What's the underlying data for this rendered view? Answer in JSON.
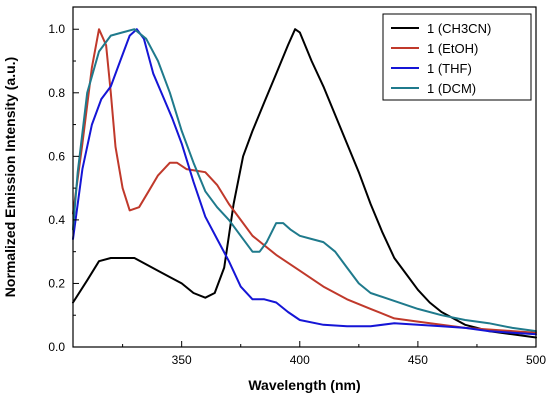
{
  "chart_data": {
    "type": "line",
    "title": "",
    "xlabel": "Wavelength (nm)",
    "ylabel": "Normalized Emission Intensity (a.u.)",
    "xlim": [
      304,
      500
    ],
    "ylim": [
      0.0,
      1.07
    ],
    "x_ticks": [
      350,
      400,
      450,
      500
    ],
    "y_ticks": [
      0.0,
      0.2,
      0.4,
      0.6,
      0.8,
      1.0
    ],
    "x_tick_labels": [
      "350",
      "400",
      "450",
      "500"
    ],
    "y_tick_labels": [
      "0.0",
      "0.2",
      "0.4",
      "0.6",
      "0.8",
      "1.0"
    ],
    "grid": false,
    "legend_position": "top-right",
    "series": [
      {
        "name": "1 (CH3CN)",
        "color": "#000000",
        "points": [
          [
            304,
            0.14
          ],
          [
            310,
            0.21
          ],
          [
            315,
            0.27
          ],
          [
            320,
            0.28
          ],
          [
            325,
            0.28
          ],
          [
            330,
            0.28
          ],
          [
            335,
            0.26
          ],
          [
            340,
            0.24
          ],
          [
            345,
            0.22
          ],
          [
            350,
            0.2
          ],
          [
            355,
            0.17
          ],
          [
            360,
            0.155
          ],
          [
            364,
            0.17
          ],
          [
            368,
            0.25
          ],
          [
            372,
            0.45
          ],
          [
            376,
            0.6
          ],
          [
            380,
            0.68
          ],
          [
            385,
            0.77
          ],
          [
            390,
            0.86
          ],
          [
            395,
            0.95
          ],
          [
            398,
            1.0
          ],
          [
            400,
            0.99
          ],
          [
            405,
            0.9
          ],
          [
            410,
            0.82
          ],
          [
            415,
            0.73
          ],
          [
            420,
            0.64
          ],
          [
            425,
            0.55
          ],
          [
            430,
            0.45
          ],
          [
            435,
            0.36
          ],
          [
            440,
            0.28
          ],
          [
            445,
            0.23
          ],
          [
            450,
            0.18
          ],
          [
            455,
            0.14
          ],
          [
            460,
            0.11
          ],
          [
            465,
            0.09
          ],
          [
            470,
            0.07
          ],
          [
            475,
            0.06
          ],
          [
            480,
            0.05
          ],
          [
            490,
            0.04
          ],
          [
            500,
            0.03
          ]
        ]
      },
      {
        "name": "1 (EtOH)",
        "color": "#c0392b",
        "points": [
          [
            304,
            0.42
          ],
          [
            308,
            0.64
          ],
          [
            312,
            0.88
          ],
          [
            315,
            1.0
          ],
          [
            318,
            0.95
          ],
          [
            320,
            0.8
          ],
          [
            322,
            0.63
          ],
          [
            325,
            0.5
          ],
          [
            328,
            0.43
          ],
          [
            332,
            0.44
          ],
          [
            336,
            0.49
          ],
          [
            340,
            0.54
          ],
          [
            345,
            0.58
          ],
          [
            348,
            0.58
          ],
          [
            352,
            0.56
          ],
          [
            356,
            0.555
          ],
          [
            360,
            0.55
          ],
          [
            365,
            0.51
          ],
          [
            370,
            0.45
          ],
          [
            375,
            0.4
          ],
          [
            380,
            0.35
          ],
          [
            390,
            0.29
          ],
          [
            400,
            0.24
          ],
          [
            410,
            0.19
          ],
          [
            420,
            0.15
          ],
          [
            430,
            0.12
          ],
          [
            440,
            0.09
          ],
          [
            450,
            0.08
          ],
          [
            460,
            0.07
          ],
          [
            470,
            0.06
          ],
          [
            480,
            0.055
          ],
          [
            490,
            0.05
          ],
          [
            500,
            0.045
          ]
        ]
      },
      {
        "name": "1 (THF)",
        "color": "#1515d6",
        "points": [
          [
            304,
            0.34
          ],
          [
            308,
            0.56
          ],
          [
            312,
            0.7
          ],
          [
            316,
            0.78
          ],
          [
            320,
            0.82
          ],
          [
            324,
            0.9
          ],
          [
            328,
            0.98
          ],
          [
            331,
            1.0
          ],
          [
            334,
            0.97
          ],
          [
            338,
            0.86
          ],
          [
            342,
            0.79
          ],
          [
            346,
            0.72
          ],
          [
            350,
            0.64
          ],
          [
            355,
            0.52
          ],
          [
            360,
            0.41
          ],
          [
            365,
            0.34
          ],
          [
            370,
            0.27
          ],
          [
            375,
            0.19
          ],
          [
            380,
            0.15
          ],
          [
            385,
            0.15
          ],
          [
            390,
            0.14
          ],
          [
            395,
            0.11
          ],
          [
            400,
            0.085
          ],
          [
            410,
            0.07
          ],
          [
            420,
            0.065
          ],
          [
            430,
            0.065
          ],
          [
            440,
            0.075
          ],
          [
            450,
            0.07
          ],
          [
            460,
            0.065
          ],
          [
            470,
            0.06
          ],
          [
            480,
            0.05
          ],
          [
            490,
            0.045
          ],
          [
            500,
            0.04
          ]
        ]
      },
      {
        "name": "1 (DCM)",
        "color": "#1f7a8c",
        "points": [
          [
            304,
            0.37
          ],
          [
            306,
            0.55
          ],
          [
            310,
            0.8
          ],
          [
            315,
            0.93
          ],
          [
            320,
            0.98
          ],
          [
            325,
            0.99
          ],
          [
            330,
            1.0
          ],
          [
            335,
            0.97
          ],
          [
            340,
            0.9
          ],
          [
            345,
            0.8
          ],
          [
            350,
            0.68
          ],
          [
            355,
            0.58
          ],
          [
            360,
            0.49
          ],
          [
            365,
            0.44
          ],
          [
            370,
            0.4
          ],
          [
            375,
            0.35
          ],
          [
            380,
            0.3
          ],
          [
            383,
            0.3
          ],
          [
            386,
            0.33
          ],
          [
            390,
            0.39
          ],
          [
            393,
            0.39
          ],
          [
            396,
            0.37
          ],
          [
            400,
            0.35
          ],
          [
            405,
            0.34
          ],
          [
            410,
            0.33
          ],
          [
            415,
            0.3
          ],
          [
            420,
            0.25
          ],
          [
            425,
            0.2
          ],
          [
            430,
            0.17
          ],
          [
            440,
            0.145
          ],
          [
            450,
            0.12
          ],
          [
            460,
            0.1
          ],
          [
            470,
            0.085
          ],
          [
            480,
            0.075
          ],
          [
            490,
            0.06
          ],
          [
            500,
            0.05
          ]
        ]
      }
    ]
  }
}
